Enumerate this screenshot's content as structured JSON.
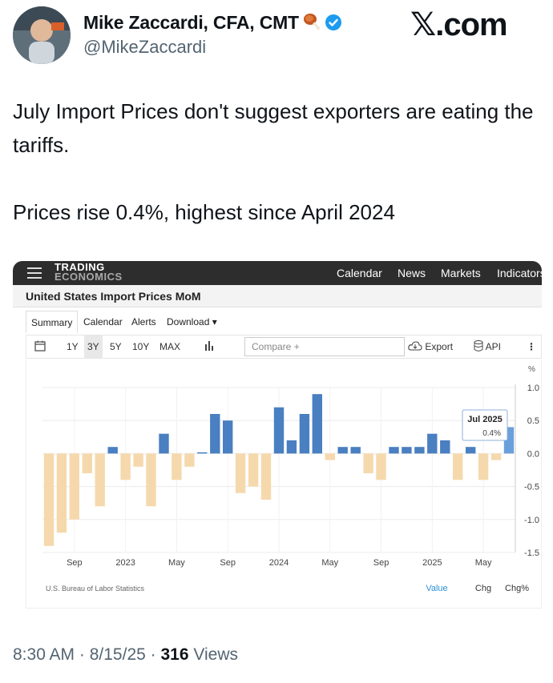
{
  "author": {
    "name": "Mike Zaccardi, CFA, CMT",
    "handle": "@MikeZaccardi"
  },
  "brand": "𝕏.com",
  "tweet": {
    "line1": "July Import Prices don't suggest exporters are eating the tariffs.",
    "line2": "Prices rise 0.4%, highest since April 2024"
  },
  "te": {
    "logo_line1": "TRADING",
    "logo_line2": "ECONOMICS",
    "menu": [
      "Calendar",
      "News",
      "Markets",
      "Indicators"
    ],
    "page_title": "United States Import Prices MoM",
    "tabs": [
      "Summary",
      "Calendar",
      "Alerts",
      "Download"
    ],
    "toolbar": {
      "ranges": [
        "1Y",
        "3Y",
        "5Y",
        "10Y",
        "MAX"
      ],
      "selected_range": "3Y",
      "compare_placeholder": "Compare +",
      "export_label": "Export",
      "api_label": "API"
    },
    "source": "U.S. Bureau of Labor Statistics",
    "views": [
      "Value",
      "Chg",
      "Chg%"
    ]
  },
  "chart_data": {
    "type": "bar",
    "unit_label": "%",
    "ylim": [
      -1.5,
      1.0
    ],
    "yticks": [
      1.0,
      0.5,
      0.0,
      -0.5,
      -1.0,
      -1.5
    ],
    "x_tick_labels": [
      {
        "label": "Sep",
        "index": 2
      },
      {
        "label": "2023",
        "index": 6
      },
      {
        "label": "May",
        "index": 10
      },
      {
        "label": "Sep",
        "index": 14
      },
      {
        "label": "2024",
        "index": 18
      },
      {
        "label": "May",
        "index": 22
      },
      {
        "label": "Sep",
        "index": 26
      },
      {
        "label": "2025",
        "index": 30
      },
      {
        "label": "May",
        "index": 34
      }
    ],
    "values": [
      -1.4,
      -1.2,
      -1.0,
      -0.3,
      -0.8,
      0.1,
      -0.4,
      -0.2,
      -0.8,
      0.3,
      -0.4,
      -0.2,
      0.0,
      0.6,
      0.5,
      -0.6,
      -0.5,
      -0.7,
      0.7,
      0.2,
      0.6,
      0.9,
      -0.1,
      0.1,
      0.1,
      -0.3,
      -0.4,
      0.1,
      0.1,
      0.1,
      0.3,
      0.2,
      -0.4,
      0.1,
      -0.4,
      -0.1,
      0.4
    ],
    "positive_color": "#4a7fc1",
    "negative_color": "#f5d9ad",
    "highlight_color": "#6a9fdc",
    "tooltip": {
      "label": "Jul 2025",
      "value": "0.4%"
    }
  },
  "footer": {
    "time": "8:30 AM",
    "date": "8/15/25",
    "views_count": "316",
    "views_label": "Views"
  }
}
